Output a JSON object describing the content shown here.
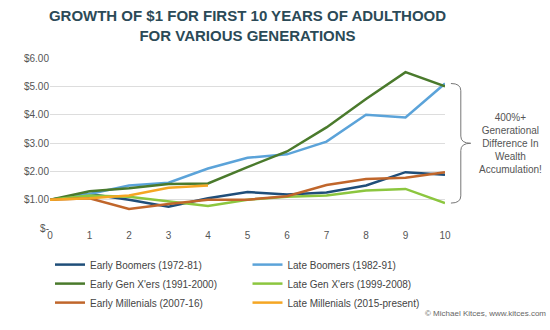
{
  "chart_data": {
    "type": "line",
    "title": "GROWTH OF $1 FOR FIRST 10 YEARS OF ADULTHOOD FOR VARIOUS GENERATIONS",
    "annotation": "400%+ Generational Difference In Wealth Accumulation!",
    "credit": "© Michael Kitces, www.kitces.com",
    "x": [
      0,
      1,
      2,
      3,
      4,
      5,
      6,
      7,
      8,
      9,
      10
    ],
    "series": [
      {
        "name": "Early Boomers (1972-81)",
        "color": "#1f4e79",
        "values": [
          1.0,
          1.2,
          1.0,
          0.75,
          1.05,
          1.27,
          1.18,
          1.25,
          1.5,
          1.97,
          1.88
        ]
      },
      {
        "name": "Late Boomers (1982-91)",
        "color": "#5ba3d9",
        "values": [
          1.0,
          1.2,
          1.5,
          1.6,
          2.1,
          2.48,
          2.6,
          3.05,
          4.0,
          3.9,
          5.1
        ]
      },
      {
        "name": "Early Gen X'ers (1991-2000)",
        "color": "#4a7a2c",
        "values": [
          1.0,
          1.3,
          1.4,
          1.55,
          1.57,
          2.15,
          2.7,
          3.55,
          4.55,
          5.5,
          5.0
        ]
      },
      {
        "name": "Late Gen X'ers (1999-2008)",
        "color": "#8cc63f",
        "values": [
          1.0,
          1.15,
          1.1,
          0.95,
          0.78,
          1.0,
          1.1,
          1.15,
          1.32,
          1.38,
          0.88
        ]
      },
      {
        "name": "Early Millenials (2007-16)",
        "color": "#c0662b",
        "values": [
          1.0,
          1.05,
          0.67,
          0.85,
          1.0,
          1.0,
          1.12,
          1.52,
          1.73,
          1.77,
          1.97
        ]
      },
      {
        "name": "Late Millenials (2015-present)",
        "color": "#f5a623",
        "values": [
          1.0,
          1.05,
          1.15,
          1.42,
          1.5,
          null,
          null,
          null,
          null,
          null,
          null
        ]
      }
    ],
    "xlim": [
      0,
      10
    ],
    "xticks": [
      0,
      1,
      2,
      3,
      4,
      5,
      6,
      7,
      8,
      9,
      10
    ],
    "ylim": [
      0,
      6
    ],
    "yticks": [
      {
        "value": 0,
        "label": "$-"
      },
      {
        "value": 1,
        "label": "$1.00"
      },
      {
        "value": 2,
        "label": "$2.00"
      },
      {
        "value": 3,
        "label": "$3.00"
      },
      {
        "value": 4,
        "label": "$4.00"
      },
      {
        "value": 5,
        "label": "$5.00"
      },
      {
        "value": 6,
        "label": "$6.00"
      }
    ],
    "grid": true,
    "legend": "bottom"
  }
}
